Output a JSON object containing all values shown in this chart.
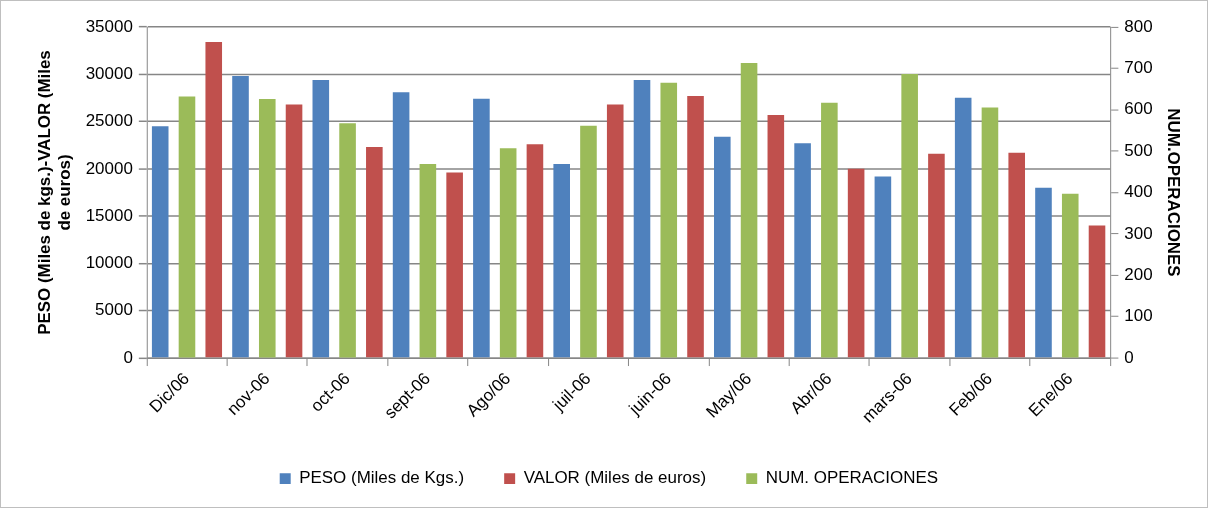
{
  "chart_data": {
    "type": "bar",
    "ylabel": "PESO (Miles de kgs.)-VALOR (Miles de euros)",
    "y2label": "NUM.OPERACIONES",
    "categories": [
      "Dic/06",
      "nov-06",
      "oct-06",
      "sept-06",
      "Ago/06",
      "juil-06",
      "juin-06",
      "May/06",
      "Abr/06",
      "mars-06",
      "Feb/06",
      "Ene/06"
    ],
    "series": [
      {
        "name": "PESO (Miles de Kgs.)",
        "color": "#4f81bd",
        "values": [
          24500,
          29800,
          29400,
          28100,
          27400,
          20500,
          29400,
          23400,
          22700,
          19200,
          27500,
          18000
        ]
      },
      {
        "name": "VALOR (Miles de euros)",
        "color": "#c0504d",
        "values": [
          33400,
          26800,
          22300,
          19600,
          22600,
          26800,
          27700,
          25700,
          20000,
          21600,
          21700,
          14000
        ]
      },
      {
        "name": "NUM. OPERACIONES",
        "color": "#9bbb59",
        "axis": "y2",
        "values": [
          632,
          626,
          567,
          469,
          507,
          561,
          665,
          713,
          617,
          686,
          605,
          397
        ]
      }
    ],
    "ylim": [
      0,
      35000
    ],
    "yticks": [
      0,
      5000,
      10000,
      15000,
      20000,
      25000,
      30000,
      35000
    ],
    "y2lim": [
      0,
      800
    ],
    "y2ticks": [
      0,
      100,
      200,
      300,
      400,
      500,
      600,
      700,
      800
    ],
    "grid": "y",
    "legend": "bottom"
  }
}
